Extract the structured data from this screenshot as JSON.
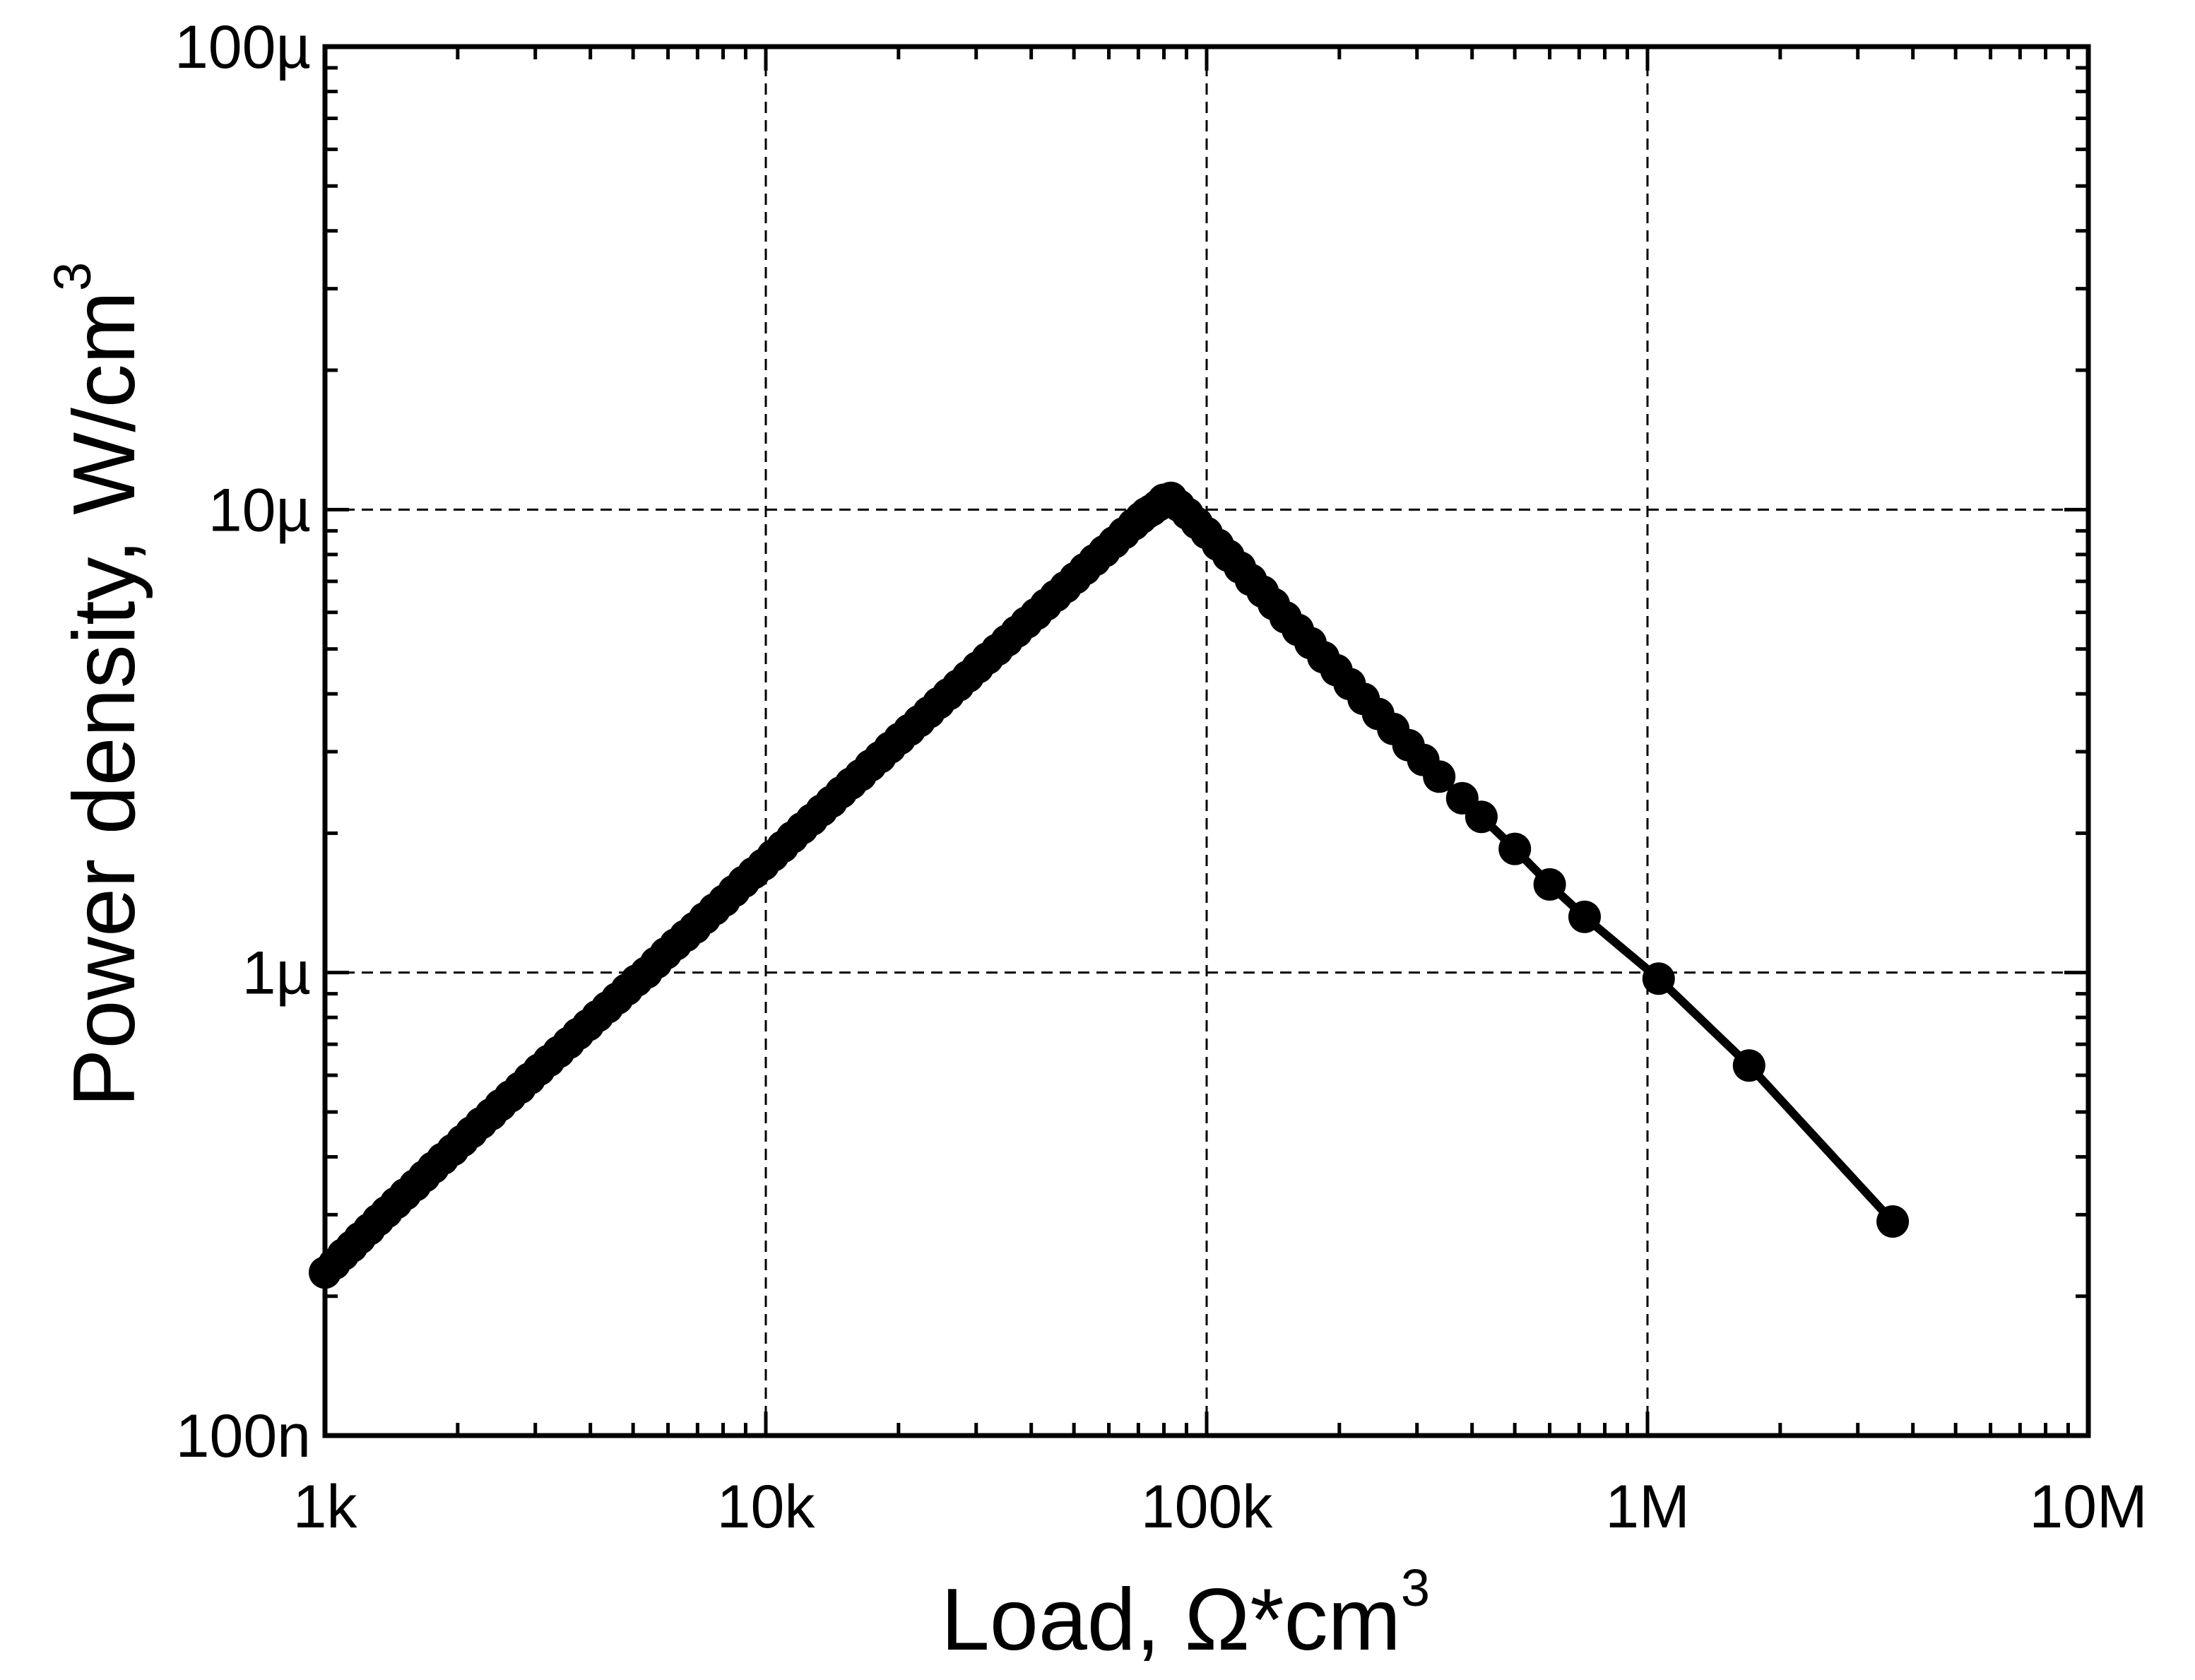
{
  "chart_data": {
    "type": "line",
    "markers": true,
    "x_scale": "log",
    "y_scale": "log",
    "xlim": [
      1000,
      10000000
    ],
    "ylim": [
      1e-07,
      0.0001
    ],
    "x_ticks": [
      {
        "value": 1000,
        "label": "1k"
      },
      {
        "value": 10000,
        "label": "10k"
      },
      {
        "value": 100000,
        "label": "100k"
      },
      {
        "value": 1000000,
        "label": "1M"
      },
      {
        "value": 10000000,
        "label": "10M"
      }
    ],
    "y_ticks": [
      {
        "value": 1e-07,
        "label": "100n"
      },
      {
        "value": 1e-06,
        "label": "1µ"
      },
      {
        "value": 1e-05,
        "label": "10µ"
      },
      {
        "value": 0.0001,
        "label": "100µ"
      }
    ],
    "xlabel": {
      "text": "Load, Ω*cm",
      "sup": "3"
    },
    "ylabel": {
      "text": "Power density, W/cm",
      "sup": "3"
    },
    "grid": {
      "major": true,
      "style": "dashed"
    },
    "colors": {
      "series": "#000000",
      "axes": "#000000",
      "grid": "#000000"
    },
    "series": [
      {
        "x": [
          1000,
          1050,
          1100,
          1150,
          1200,
          1260,
          1320,
          1380,
          1450,
          1520,
          1600,
          1680,
          1760,
          1850,
          1950,
          2050,
          2150,
          2260,
          2380,
          2500,
          2630,
          2770,
          2910,
          3060,
          3220,
          3390,
          3570,
          3750,
          3950,
          4150,
          4370,
          4600,
          4840,
          5090,
          5360,
          5640,
          5930,
          6240,
          6570,
          6910,
          7270,
          7650,
          8050,
          8470,
          8910,
          9380,
          9870,
          10380,
          10920,
          11490,
          12090,
          12720,
          13390,
          14090,
          14820,
          15600,
          16410,
          17270,
          18170,
          19120,
          20120,
          21170,
          22280,
          23440,
          24670,
          25950,
          27310,
          28740,
          30240,
          31820,
          33480,
          35230,
          37070,
          39010,
          41050,
          43190,
          45450,
          47820,
          50320,
          52950,
          55720,
          58630,
          61690,
          64910,
          68300,
          71000,
          73000,
          75000,
          77500,
          80000,
          83000,
          86500,
          90500,
          95000,
          100000,
          106000,
          112000,
          119000,
          126000,
          134000,
          142000,
          151000,
          161000,
          172000,
          184000,
          197000,
          211000,
          227000,
          245000,
          265000,
          287000,
          310000,
          337000,
          380000,
          420000,
          500000,
          600000,
          720000,
          1060000,
          1700000,
          3600000
        ],
        "y": [
          2.25e-07,
          2.35e-07,
          2.46e-07,
          2.56e-07,
          2.67e-07,
          2.79e-07,
          2.92e-07,
          3.04e-07,
          3.18e-07,
          3.32e-07,
          3.47e-07,
          3.63e-07,
          3.79e-07,
          3.96e-07,
          4.14e-07,
          4.33e-07,
          4.52e-07,
          4.73e-07,
          4.94e-07,
          5.17e-07,
          5.4e-07,
          5.64e-07,
          5.9e-07,
          6.17e-07,
          6.45e-07,
          6.74e-07,
          7.05e-07,
          7.37e-07,
          7.7e-07,
          8.05e-07,
          8.41e-07,
          8.79e-07,
          9.19e-07,
          9.61e-07,
          1e-06,
          1.05e-06,
          1.1e-06,
          1.15e-06,
          1.2e-06,
          1.25e-06,
          1.31e-06,
          1.37e-06,
          1.43e-06,
          1.5e-06,
          1.57e-06,
          1.64e-06,
          1.71e-06,
          1.79e-06,
          1.87e-06,
          1.96e-06,
          2.05e-06,
          2.14e-06,
          2.24e-06,
          2.34e-06,
          2.45e-06,
          2.56e-06,
          2.67e-06,
          2.8e-06,
          2.92e-06,
          3.06e-06,
          3.2e-06,
          3.34e-06,
          3.49e-06,
          3.65e-06,
          3.82e-06,
          3.99e-06,
          4.17e-06,
          4.36e-06,
          4.56e-06,
          4.77e-06,
          4.98e-06,
          5.21e-06,
          5.45e-06,
          5.7e-06,
          5.95e-06,
          6.23e-06,
          6.51e-06,
          6.8e-06,
          7.11e-06,
          7.44e-06,
          7.78e-06,
          8.13e-06,
          8.5e-06,
          8.89e-06,
          9.29e-06,
          9.6e-06,
          9.82e-06,
          9.97e-06,
          1.02e-05,
          1.05e-05,
          1.06e-05,
          1.02e-05,
          9.8e-06,
          9.35e-06,
          8.9e-06,
          8.4e-06,
          7.95e-06,
          7.5e-06,
          7.05e-06,
          6.65e-06,
          6.25e-06,
          5.85e-06,
          5.5e-06,
          5.15e-06,
          4.8e-06,
          4.5e-06,
          4.2e-06,
          3.9e-06,
          3.62e-06,
          3.36e-06,
          3.1e-06,
          2.88e-06,
          2.65e-06,
          2.38e-06,
          2.17e-06,
          1.85e-06,
          1.55e-06,
          1.32e-06,
          9.7e-07,
          6.3e-07,
          2.9e-07
        ]
      }
    ]
  }
}
